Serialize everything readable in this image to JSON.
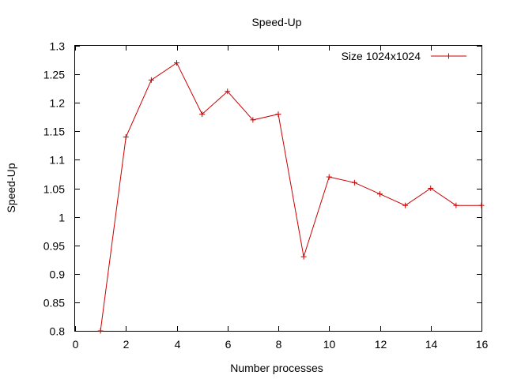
{
  "chart_data": {
    "type": "line",
    "title": "Speed-Up",
    "xlabel": "Number processes",
    "ylabel": "Speed-Up",
    "xlim": [
      0,
      16
    ],
    "ylim": [
      0.8,
      1.3
    ],
    "xticks": [
      0,
      2,
      4,
      6,
      8,
      10,
      12,
      14,
      16
    ],
    "xtick_labels": [
      "0",
      "2",
      "4",
      "6",
      "8",
      "10",
      "12",
      "14",
      "16"
    ],
    "yticks": [
      0.8,
      0.85,
      0.9,
      0.95,
      1.0,
      1.05,
      1.1,
      1.15,
      1.2,
      1.25,
      1.3
    ],
    "ytick_labels": [
      "0.8",
      "0.85",
      "0.9",
      "0.95",
      "1",
      "1.05",
      "1.1",
      "1.15",
      "1.2",
      "1.25",
      "1.3"
    ],
    "grid": false,
    "legend_position": "top-right",
    "series": [
      {
        "name": "Size 1024x1024",
        "color": "#cc0000",
        "marker": "plus",
        "x": [
          1,
          2,
          3,
          4,
          5,
          6,
          7,
          8,
          9,
          10,
          11,
          12,
          13,
          14,
          15,
          16
        ],
        "y": [
          0.8,
          1.14,
          1.24,
          1.27,
          1.18,
          1.22,
          1.17,
          1.18,
          0.93,
          1.07,
          1.06,
          1.04,
          1.02,
          1.05,
          1.02,
          1.02
        ]
      }
    ]
  }
}
